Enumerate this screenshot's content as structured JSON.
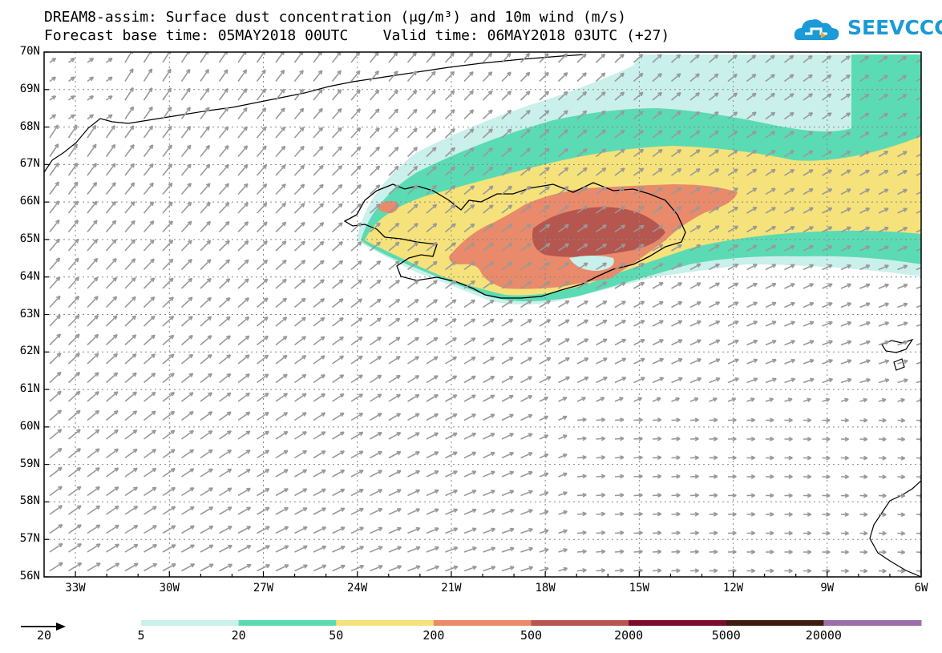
{
  "header": {
    "title_line1": "DREAM8-assim: Surface dust concentration (μg/m³) and 10m wind (m/s)",
    "title_line2": "Forecast base time: 05MAY2018 00UTC    Valid time: 06MAY2018 03UTC (+27)"
  },
  "logo": {
    "text": "SEEVCCC",
    "icon": "cloud-icon"
  },
  "axes": {
    "lat_labels": [
      "70N",
      "69N",
      "68N",
      "67N",
      "66N",
      "65N",
      "64N",
      "63N",
      "62N",
      "61N",
      "60N",
      "59N",
      "58N",
      "57N",
      "56N"
    ],
    "lon_labels": [
      "33W",
      "30W",
      "27W",
      "24W",
      "21W",
      "18W",
      "15W",
      "12W",
      "9W",
      "6W"
    ]
  },
  "legend": {
    "wind_ref_value": "20",
    "colors": [
      "#c9f0eb",
      "#5bdbb3",
      "#f5e27a",
      "#e98a6b",
      "#b5564f",
      "#7c0c2c",
      "#3e1c10",
      "#9a6fab"
    ],
    "labels": [
      "5",
      "20",
      "50",
      "200",
      "500",
      "2000",
      "5000",
      "20000"
    ]
  }
}
